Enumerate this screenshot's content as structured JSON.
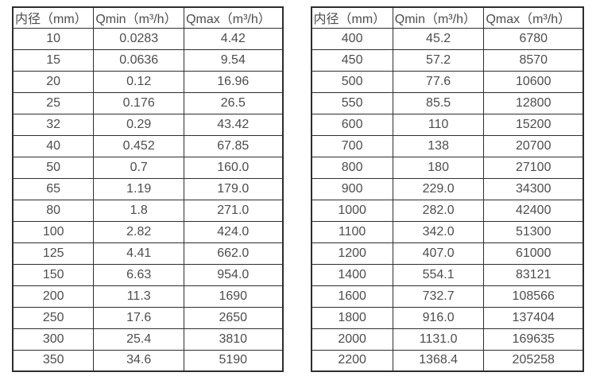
{
  "page": {
    "background_color": "#ffffff",
    "text_color": "#4d4d4d",
    "border_color": "#2e2e2e"
  },
  "chart_data": [
    {
      "type": "table",
      "name": "flow-rate-table-small-diameters",
      "columns": [
        "内径（mm）",
        "Qmin（m³/h）",
        "Qmax（m³/h）"
      ],
      "rows": [
        [
          "10",
          "0.0283",
          "4.42"
        ],
        [
          "15",
          "0.0636",
          "9.54"
        ],
        [
          "20",
          "0.12",
          "16.96"
        ],
        [
          "25",
          "0.176",
          "26.5"
        ],
        [
          "32",
          "0.29",
          "43.42"
        ],
        [
          "40",
          "0.452",
          "67.85"
        ],
        [
          "50",
          "0.7",
          "160.0"
        ],
        [
          "65",
          "1.19",
          "179.0"
        ],
        [
          "80",
          "1.8",
          "271.0"
        ],
        [
          "100",
          "2.82",
          "424.0"
        ],
        [
          "125",
          "4.41",
          "662.0"
        ],
        [
          "150",
          "6.63",
          "954.0"
        ],
        [
          "200",
          "11.3",
          "1690"
        ],
        [
          "250",
          "17.6",
          "2650"
        ],
        [
          "300",
          "25.4",
          "3810"
        ],
        [
          "350",
          "34.6",
          "5190"
        ]
      ]
    },
    {
      "type": "table",
      "name": "flow-rate-table-large-diameters",
      "columns": [
        "内径（mm）",
        "Qmin（m³/h）",
        "Qmax（m³/h）"
      ],
      "rows": [
        [
          "400",
          "45.2",
          "6780"
        ],
        [
          "450",
          "57.2",
          "8570"
        ],
        [
          "500",
          "77.6",
          "10600"
        ],
        [
          "550",
          "85.5",
          "12800"
        ],
        [
          "600",
          "110",
          "15200"
        ],
        [
          "700",
          "138",
          "20700"
        ],
        [
          "800",
          "180",
          "27100"
        ],
        [
          "900",
          "229.0",
          "34300"
        ],
        [
          "1000",
          "282.0",
          "42400"
        ],
        [
          "1100",
          "342.0",
          "51300"
        ],
        [
          "1200",
          "407.0",
          "61000"
        ],
        [
          "1400",
          "554.1",
          "83121"
        ],
        [
          "1600",
          "732.7",
          "108566"
        ],
        [
          "1800",
          "916.0",
          "137404"
        ],
        [
          "2000",
          "1131.0",
          "169635"
        ],
        [
          "2200",
          "1368.4",
          "205258"
        ]
      ]
    }
  ]
}
